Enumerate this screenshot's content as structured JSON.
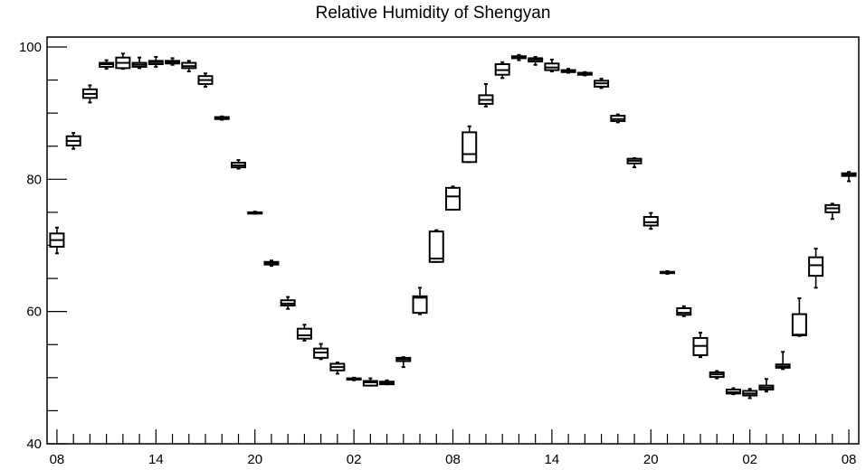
{
  "chart_data": {
    "type": "box",
    "title": "Relative Humidity of Shengyan",
    "xlabel": "",
    "ylabel": "",
    "ylim": [
      40,
      101.5
    ],
    "y_ticks": [
      40,
      60,
      80,
      100
    ],
    "x_tick_labels": [
      "08",
      "14",
      "20",
      "02",
      "08",
      "14",
      "20",
      "02",
      "08"
    ],
    "x_tick_hours": [
      0,
      6,
      12,
      18,
      24,
      30,
      36,
      42,
      48
    ],
    "grid": false,
    "color": "#000000",
    "boxes": [
      {
        "h": 0,
        "min": 68.8,
        "q1": 69.8,
        "med": 70.8,
        "q3": 71.8,
        "max": 72.7
      },
      {
        "h": 1,
        "min": 84.6,
        "q1": 85.1,
        "med": 85.8,
        "q3": 86.5,
        "max": 87.0
      },
      {
        "h": 2,
        "min": 91.6,
        "q1": 92.3,
        "med": 92.9,
        "q3": 93.6,
        "max": 94.2
      },
      {
        "h": 3,
        "min": 96.7,
        "q1": 97.0,
        "med": 97.4,
        "q3": 97.6,
        "max": 98.0
      },
      {
        "h": 4,
        "min": 96.7,
        "q1": 96.8,
        "med": 97.6,
        "q3": 98.4,
        "max": 99.0
      },
      {
        "h": 5,
        "min": 96.8,
        "q1": 97.0,
        "med": 97.3,
        "q3": 97.6,
        "max": 98.4
      },
      {
        "h": 6,
        "min": 97.0,
        "q1": 97.4,
        "med": 97.7,
        "q3": 97.9,
        "max": 98.5
      },
      {
        "h": 7,
        "min": 97.3,
        "q1": 97.5,
        "med": 97.7,
        "q3": 97.9,
        "max": 98.3
      },
      {
        "h": 8,
        "min": 96.3,
        "q1": 96.8,
        "med": 97.1,
        "q3": 97.6,
        "max": 97.9
      },
      {
        "h": 9,
        "min": 94.0,
        "q1": 94.4,
        "med": 95.0,
        "q3": 95.6,
        "max": 96.0
      },
      {
        "h": 10,
        "min": 89.0,
        "q1": 89.1,
        "med": 89.3,
        "q3": 89.4,
        "max": 89.5
      },
      {
        "h": 11,
        "min": 81.6,
        "q1": 81.8,
        "med": 82.1,
        "q3": 82.5,
        "max": 82.9
      },
      {
        "h": 12,
        "min": 74.8,
        "q1": 74.8,
        "med": 74.9,
        "q3": 75.0,
        "max": 75.1
      },
      {
        "h": 13,
        "min": 66.9,
        "q1": 67.1,
        "med": 67.3,
        "q3": 67.5,
        "max": 67.7
      },
      {
        "h": 14,
        "min": 60.4,
        "q1": 60.9,
        "med": 61.2,
        "q3": 61.7,
        "max": 62.2
      },
      {
        "h": 15,
        "min": 55.6,
        "q1": 55.9,
        "med": 56.4,
        "q3": 57.4,
        "max": 58.0
      },
      {
        "h": 16,
        "min": 52.8,
        "q1": 53.0,
        "med": 53.8,
        "q3": 54.4,
        "max": 55.1
      },
      {
        "h": 17,
        "min": 50.6,
        "q1": 51.1,
        "med": 51.6,
        "q3": 52.1,
        "max": 52.3
      },
      {
        "h": 18,
        "min": 49.6,
        "q1": 49.7,
        "med": 49.8,
        "q3": 49.9,
        "max": 50.0
      },
      {
        "h": 19,
        "min": 48.8,
        "q1": 48.8,
        "med": 49.3,
        "q3": 49.5,
        "max": 49.9
      },
      {
        "h": 20,
        "min": 49.0,
        "q1": 49.0,
        "med": 49.2,
        "q3": 49.4,
        "max": 49.6
      },
      {
        "h": 21,
        "min": 51.6,
        "q1": 52.5,
        "med": 52.8,
        "q3": 53.0,
        "max": 53.1
      },
      {
        "h": 22,
        "min": 59.6,
        "q1": 59.8,
        "med": 62.1,
        "q3": 62.3,
        "max": 63.6
      },
      {
        "h": 23,
        "min": 67.5,
        "q1": 67.5,
        "med": 68.0,
        "q3": 72.1,
        "max": 72.3
      },
      {
        "h": 24,
        "min": 75.4,
        "q1": 75.4,
        "med": 77.4,
        "q3": 78.7,
        "max": 78.9
      },
      {
        "h": 25,
        "min": 82.6,
        "q1": 82.6,
        "med": 83.8,
        "q3": 87.1,
        "max": 88.0
      },
      {
        "h": 26,
        "min": 91.0,
        "q1": 91.4,
        "med": 92.0,
        "q3": 92.7,
        "max": 94.4
      },
      {
        "h": 27,
        "min": 95.3,
        "q1": 95.8,
        "med": 96.5,
        "q3": 97.4,
        "max": 97.7
      },
      {
        "h": 28,
        "min": 98.0,
        "q1": 98.3,
        "med": 98.4,
        "q3": 98.6,
        "max": 98.8
      },
      {
        "h": 29,
        "min": 97.3,
        "q1": 97.8,
        "med": 98.1,
        "q3": 98.3,
        "max": 98.5
      },
      {
        "h": 30,
        "min": 96.3,
        "q1": 96.5,
        "med": 96.9,
        "q3": 97.5,
        "max": 98.1
      },
      {
        "h": 31,
        "min": 96.1,
        "q1": 96.2,
        "med": 96.4,
        "q3": 96.5,
        "max": 96.7
      },
      {
        "h": 32,
        "min": 95.7,
        "q1": 95.8,
        "med": 96.0,
        "q3": 96.1,
        "max": 96.2
      },
      {
        "h": 33,
        "min": 93.8,
        "q1": 94.0,
        "med": 94.5,
        "q3": 94.9,
        "max": 95.2
      },
      {
        "h": 34,
        "min": 88.6,
        "q1": 88.8,
        "med": 89.1,
        "q3": 89.6,
        "max": 89.8
      },
      {
        "h": 35,
        "min": 81.8,
        "q1": 82.4,
        "med": 82.8,
        "q3": 83.1,
        "max": 83.2
      },
      {
        "h": 36,
        "min": 72.5,
        "q1": 73.0,
        "med": 73.5,
        "q3": 74.3,
        "max": 74.9
      },
      {
        "h": 37,
        "min": 65.7,
        "q1": 65.8,
        "med": 65.9,
        "q3": 66.0,
        "max": 66.1
      },
      {
        "h": 38,
        "min": 59.3,
        "q1": 59.5,
        "med": 59.8,
        "q3": 60.5,
        "max": 60.8
      },
      {
        "h": 39,
        "min": 53.1,
        "q1": 53.4,
        "med": 54.8,
        "q3": 56.0,
        "max": 56.8
      },
      {
        "h": 40,
        "min": 49.9,
        "q1": 50.1,
        "med": 50.5,
        "q3": 50.8,
        "max": 51.0
      },
      {
        "h": 41,
        "min": 47.5,
        "q1": 47.6,
        "med": 47.8,
        "q3": 48.2,
        "max": 48.4
      },
      {
        "h": 42,
        "min": 46.9,
        "q1": 47.3,
        "med": 47.6,
        "q3": 48.0,
        "max": 48.3
      },
      {
        "h": 43,
        "min": 47.9,
        "q1": 48.2,
        "med": 48.5,
        "q3": 48.8,
        "max": 49.8
      },
      {
        "h": 44,
        "min": 51.3,
        "q1": 51.5,
        "med": 51.7,
        "q3": 52.0,
        "max": 53.9
      },
      {
        "h": 45,
        "min": 56.3,
        "q1": 56.4,
        "med": 56.5,
        "q3": 59.6,
        "max": 62.0
      },
      {
        "h": 46,
        "min": 63.6,
        "q1": 65.4,
        "med": 67.0,
        "q3": 68.2,
        "max": 69.5
      },
      {
        "h": 47,
        "min": 74.0,
        "q1": 75.0,
        "med": 75.6,
        "q3": 76.1,
        "max": 76.3
      },
      {
        "h": 48,
        "min": 79.7,
        "q1": 80.5,
        "med": 80.7,
        "q3": 80.9,
        "max": 81.1
      }
    ]
  }
}
